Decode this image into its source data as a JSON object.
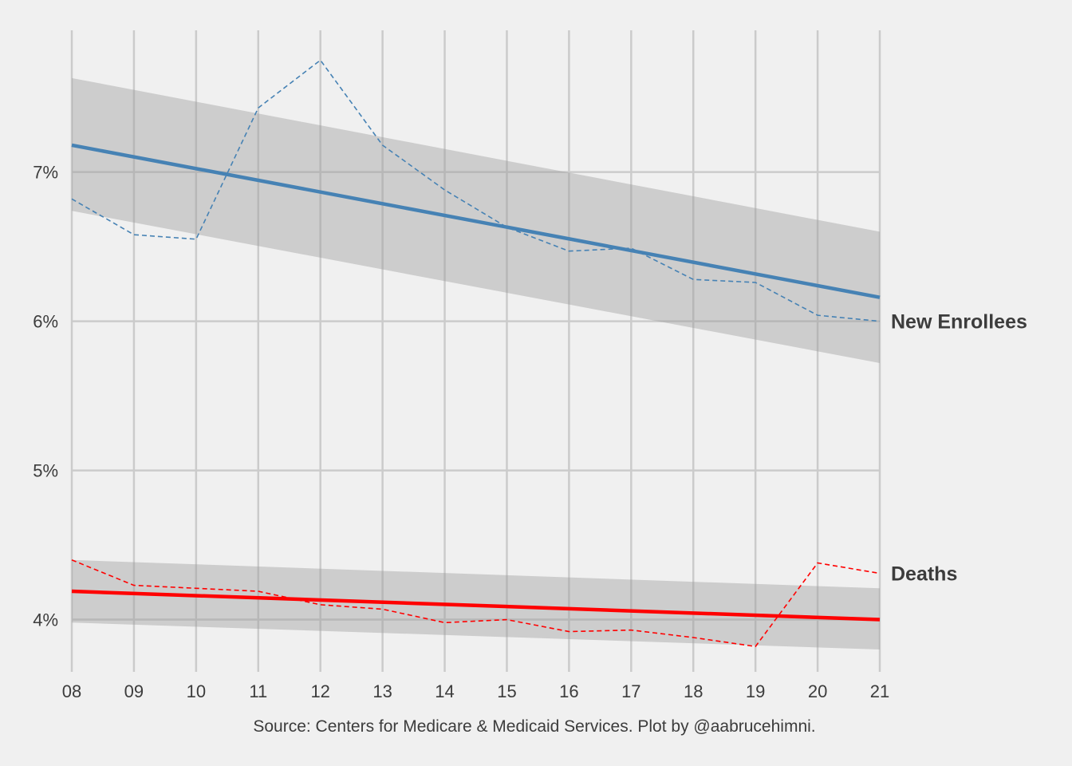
{
  "chart_data": {
    "type": "line",
    "title": "",
    "xlabel": "",
    "ylabel": "",
    "caption": "Source: Centers for Medicare & Medicaid Services. Plot by @aabrucehimni.",
    "x": [
      "08",
      "09",
      "10",
      "11",
      "12",
      "13",
      "14",
      "15",
      "16",
      "17",
      "18",
      "19",
      "20",
      "21"
    ],
    "xlim": [
      2008,
      2021
    ],
    "ylim": [
      3.65,
      7.95
    ],
    "yticks": [
      {
        "value": 4,
        "label": "4%"
      },
      {
        "value": 5,
        "label": "5%"
      },
      {
        "value": 6,
        "label": "6%"
      },
      {
        "value": 7,
        "label": "7%"
      }
    ],
    "grid": true,
    "legend": "none",
    "series": [
      {
        "name": "New Enrollees",
        "color": "#4682b4",
        "values": [
          6.82,
          6.58,
          6.55,
          7.43,
          7.75,
          7.18,
          6.88,
          6.63,
          6.47,
          6.49,
          6.28,
          6.26,
          6.04,
          6.0
        ],
        "trend": [
          7.18,
          6.16
        ],
        "ci_lower": [
          6.74,
          5.72
        ],
        "ci_upper": [
          7.63,
          6.6
        ]
      },
      {
        "name": "Deaths",
        "color": "#ff0000",
        "values": [
          4.4,
          4.23,
          4.21,
          4.19,
          4.1,
          4.07,
          3.98,
          4.0,
          3.92,
          3.93,
          3.88,
          3.82,
          4.38,
          4.31
        ],
        "trend": [
          4.19,
          4.0
        ],
        "ci_lower": [
          3.98,
          3.8
        ],
        "ci_upper": [
          4.4,
          4.21
        ]
      }
    ]
  }
}
